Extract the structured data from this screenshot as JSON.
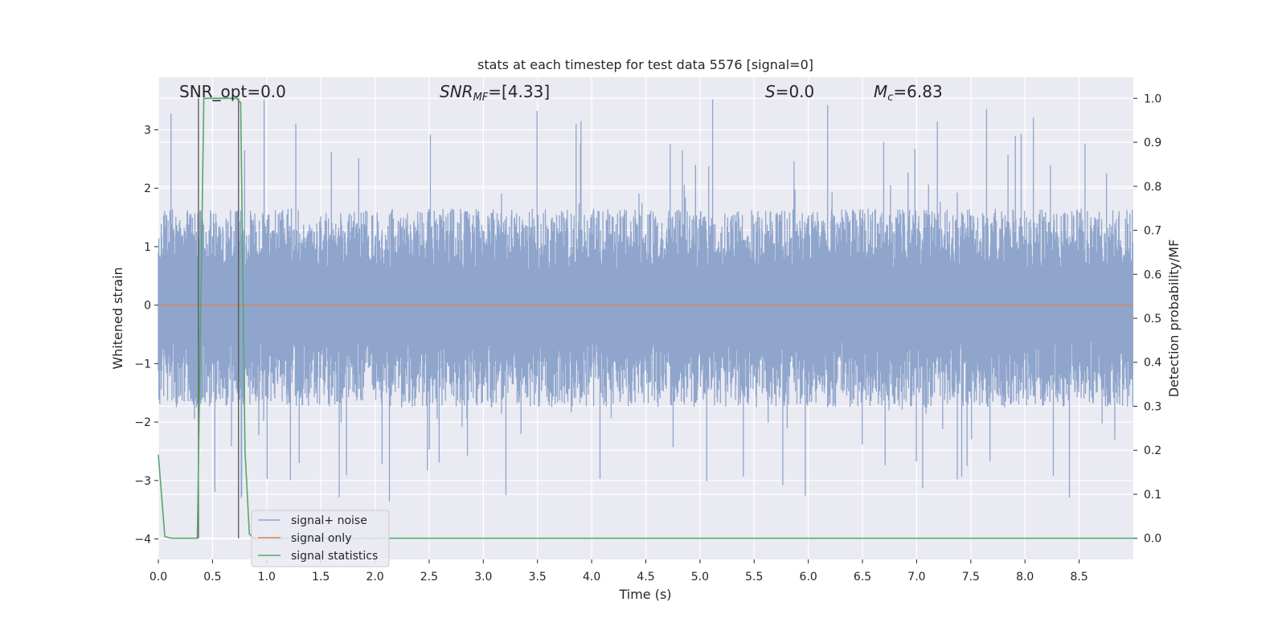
{
  "chart_data": {
    "type": "line",
    "title": "stats at each timestep for test data 5576 [signal=0]",
    "xlabel": "Time (s)",
    "ylabel": "Whitened strain",
    "y2label": "Detection probability/MF",
    "xlim": [
      0,
      9
    ],
    "ylim": [
      -4.35,
      3.9
    ],
    "y2lim": [
      -0.048,
      1.048
    ],
    "xticks": [
      "0.0",
      "0.5",
      "1.0",
      "1.5",
      "2.0",
      "2.5",
      "3.0",
      "3.5",
      "4.0",
      "4.5",
      "5.0",
      "5.5",
      "6.0",
      "6.5",
      "7.0",
      "7.5",
      "8.0",
      "8.5"
    ],
    "xtick_values": [
      0,
      0.5,
      1,
      1.5,
      2,
      2.5,
      3,
      3.5,
      4,
      4.5,
      5,
      5.5,
      6,
      6.5,
      7,
      7.5,
      8,
      8.5
    ],
    "yticks": [
      "3",
      "2",
      "1",
      "0",
      "−1",
      "−2",
      "−3",
      "−4"
    ],
    "ytick_values": [
      3,
      2,
      1,
      0,
      -1,
      -2,
      -3,
      -4
    ],
    "y2ticks": [
      "1.0",
      "0.9",
      "0.8",
      "0.7",
      "0.6",
      "0.5",
      "0.4",
      "0.3",
      "0.2",
      "0.1",
      "0.0"
    ],
    "y2tick_values": [
      1.0,
      0.9,
      0.8,
      0.7,
      0.6,
      0.5,
      0.4,
      0.3,
      0.2,
      0.1,
      0.0
    ],
    "grid": true,
    "legend_position": "lower-left",
    "annotations": {
      "snr_opt": "SNR_opt=0.0",
      "snr_mf_prefix": "SNR",
      "snr_mf_sub": "MF",
      "snr_mf_value": "=[4.33]",
      "s_prefix": "S",
      "s_value": "=0.0",
      "mc_prefix": "M",
      "mc_sub": "c",
      "mc_value": "=6.83"
    },
    "vertical_markers": [
      0.37,
      0.74
    ],
    "series": [
      {
        "name": "signal+ noise",
        "color": "#8fa5cc",
        "noise_band": {
          "core_low": -1.75,
          "core_high": 1.65,
          "peak_high": 3.55,
          "peak_low": -3.45,
          "step": 0.0045
        }
      },
      {
        "name": "signal only",
        "color": "#dd8452",
        "x": [
          0,
          9
        ],
        "y": [
          0,
          0
        ]
      },
      {
        "name": "signal statistics",
        "color": "#55a868",
        "axis": "right",
        "x": [
          0,
          0.06,
          0.12,
          0.3,
          0.36,
          0.42,
          0.72,
          0.76,
          0.8,
          0.84,
          0.88,
          9.0
        ],
        "y": [
          0.19,
          0.004,
          0.0,
          0.0,
          0.0,
          1.0,
          1.0,
          0.99,
          0.2,
          0.01,
          0.0,
          0.0
        ]
      }
    ],
    "colors": {
      "plot_bg": "#eaeaf2",
      "grid": "#ffffff",
      "marker": "#555555"
    }
  }
}
